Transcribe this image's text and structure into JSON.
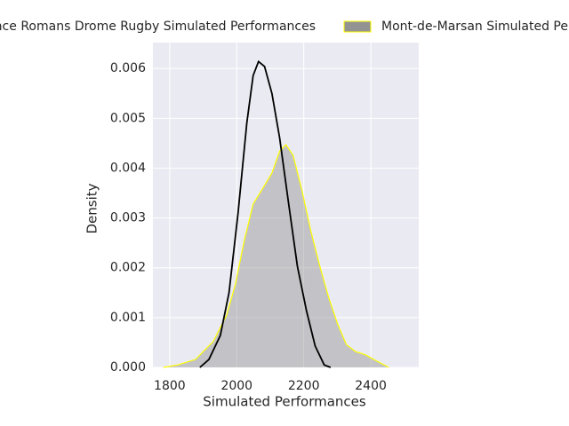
{
  "chart_data": {
    "type": "kde",
    "xlabel": "Simulated Performances",
    "ylabel": "Density",
    "xlim": [
      1750,
      2543
    ],
    "ylim": [
      0,
      0.00652
    ],
    "xticks": [
      1800,
      2000,
      2200,
      2400
    ],
    "yticks": [
      {
        "value": 0,
        "label": "0.000"
      },
      {
        "value": 0.001,
        "label": "0.001"
      },
      {
        "value": 0.002,
        "label": "0.002"
      },
      {
        "value": 0.003,
        "label": "0.003"
      },
      {
        "value": 0.004,
        "label": "0.004"
      },
      {
        "value": 0.005,
        "label": "0.005"
      },
      {
        "value": 0.006,
        "label": "0.006"
      }
    ],
    "grid": true,
    "series": [
      {
        "name": "Valence Romans Drome Rugby Simulated Performances",
        "color": "#000000",
        "fill": false,
        "x": [
          1890,
          1917,
          1951,
          1977,
          2004,
          2030,
          2049,
          2065,
          2083,
          2105,
          2128,
          2155,
          2181,
          2208,
          2234,
          2261,
          2280
        ],
        "values": [
          0,
          0.00016,
          0.00064,
          0.0015,
          0.0031,
          0.0049,
          0.00586,
          0.00614,
          0.00604,
          0.0055,
          0.00461,
          0.00328,
          0.00203,
          0.00114,
          0.00043,
          5e-05,
          0
        ]
      },
      {
        "name": "Mont-de-Marsan Simulated Performances",
        "color": "#ffff00",
        "fill": true,
        "fillcolor": "#808080",
        "x": [
          1781,
          1824,
          1877,
          1930,
          1970,
          1996,
          2023,
          2049,
          2081,
          2105,
          2128,
          2147,
          2168,
          2195,
          2221,
          2248,
          2274,
          2301,
          2327,
          2354,
          2385,
          2420,
          2454
        ],
        "values": [
          0,
          5e-05,
          0.00016,
          0.00052,
          0.00105,
          0.00167,
          0.00256,
          0.00328,
          0.00363,
          0.0039,
          0.00434,
          0.00447,
          0.00426,
          0.00354,
          0.00274,
          0.00203,
          0.00141,
          0.00087,
          0.00046,
          0.00032,
          0.00025,
          0.00012,
          0
        ]
      }
    ]
  }
}
